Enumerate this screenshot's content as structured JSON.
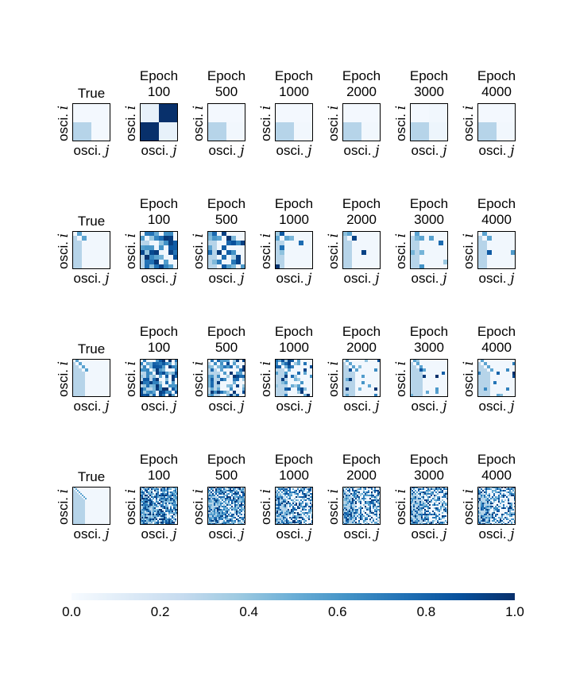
{
  "chart_data": {
    "type": "heatmap",
    "row_count": 4,
    "columns": [
      {
        "title_line1": "",
        "title_line2": "True"
      },
      {
        "title_line1": "Epoch",
        "title_line2": "100"
      },
      {
        "title_line1": "Epoch",
        "title_line2": "500"
      },
      {
        "title_line1": "Epoch",
        "title_line2": "1000"
      },
      {
        "title_line1": "Epoch",
        "title_line2": "2000"
      },
      {
        "title_line1": "Epoch",
        "title_line2": "3000"
      },
      {
        "title_line1": "Epoch",
        "title_line2": "4000"
      }
    ],
    "xlabel_text": "osci.",
    "xlabel_var": "j",
    "ylabel_text": "osci.",
    "ylabel_var": "i",
    "matrix_sizes": [
      2,
      8,
      12,
      24
    ],
    "colormap": "Blues",
    "colormap_stops": [
      "#f7fbff",
      "#deebf7",
      "#c6dbef",
      "#9ecae1",
      "#6baed6",
      "#4292c6",
      "#2171b5",
      "#08519c",
      "#08306b"
    ],
    "colorbar": {
      "min": 0.0,
      "max": 1.0,
      "ticks": [
        "0.0",
        "0.2",
        "0.4",
        "0.6",
        "0.8",
        "1.0"
      ]
    },
    "row0_matrices": [
      [
        [
          0.02,
          0.02
        ],
        [
          0.3,
          0.02
        ]
      ],
      [
        [
          0.08,
          1.0
        ],
        [
          1.0,
          0.08
        ]
      ],
      [
        [
          0.02,
          0.02
        ],
        [
          0.3,
          0.03
        ]
      ],
      [
        [
          0.02,
          0.02
        ],
        [
          0.3,
          0.03
        ]
      ],
      [
        [
          0.02,
          0.02
        ],
        [
          0.3,
          0.03
        ]
      ],
      [
        [
          0.02,
          0.03
        ],
        [
          0.3,
          0.05
        ]
      ],
      [
        [
          0.02,
          0.02
        ],
        [
          0.3,
          0.03
        ]
      ]
    ],
    "true_lower_value": 0.3,
    "off_value": 0.03,
    "epoch_densities": [
      [
        0.0,
        0.78,
        0.4,
        0.15,
        0.05,
        0.03,
        0.02
      ],
      [
        0.0,
        0.8,
        0.55,
        0.3,
        0.1,
        0.05,
        0.05
      ],
      [
        0.0,
        0.82,
        0.72,
        0.62,
        0.6,
        0.58,
        0.55
      ]
    ]
  }
}
